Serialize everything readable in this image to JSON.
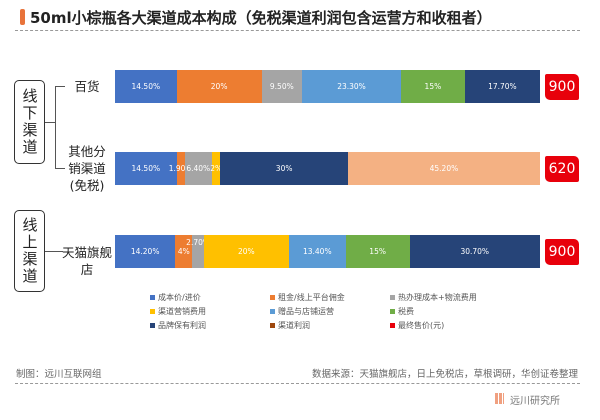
{
  "title": "50ml小棕瓶各大渠道成本构成（免税渠道利润包含运营方和收租者）",
  "groups": [
    {
      "label": "线下渠道"
    },
    {
      "label": "线上渠道"
    }
  ],
  "chart_data": {
    "type": "bar",
    "stacked": true,
    "orientation": "horizontal",
    "title": "50ml小棕瓶各大渠道成本构成（免税渠道利润包含运营方和收租者）",
    "categories": [
      "百货",
      "其他分销渠道(免税)",
      "天猫旗舰店"
    ],
    "category_lines": [
      [
        "百货"
      ],
      [
        "其他分",
        "销渠道",
        "(免税)"
      ],
      [
        "天猫旗舰店"
      ]
    ],
    "unit": "%",
    "series": [
      {
        "name": "成本价/进价",
        "color": "#4472c4",
        "values": [
          14.5,
          14.5,
          14.2
        ],
        "labels": [
          "14.50%",
          "14.50%",
          "14.20%"
        ]
      },
      {
        "name": "租金/线上平台佣金",
        "color": "#ed7d31",
        "values": [
          20,
          1.9,
          4
        ],
        "labels": [
          "20%",
          "1.90%",
          "4%"
        ]
      },
      {
        "name": "热办理成本+物流费用",
        "color": "#a5a5a5",
        "values": [
          9.5,
          6.4,
          2.7
        ],
        "labels": [
          "9.50%",
          "6.40%",
          "2.70%"
        ]
      },
      {
        "name": "渠道营销费用",
        "color": "#ffc000",
        "values": [
          0,
          2,
          20
        ],
        "labels": [
          "",
          "2%",
          "20%"
        ]
      },
      {
        "name": "赠品与店铺运营",
        "color": "#5b9bd5",
        "values": [
          23.3,
          0,
          13.4
        ],
        "labels": [
          "23.30%",
          "",
          "13.40%"
        ]
      },
      {
        "name": "税费",
        "color": "#70ad47",
        "values": [
          15,
          0,
          15
        ],
        "labels": [
          "15%",
          "",
          "15%"
        ]
      },
      {
        "name": "品牌保有利润",
        "color": "#264478",
        "values": [
          17.7,
          30,
          30.7
        ],
        "labels": [
          "17.70%",
          "30%",
          "30.70%"
        ]
      },
      {
        "name": "渠道利润",
        "color": "#9e480e",
        "bar_color": "#f4b183",
        "values": [
          0,
          45.2,
          0
        ],
        "labels": [
          "",
          "45.20%",
          ""
        ]
      }
    ],
    "final_price": {
      "name": "最终售价(元)",
      "color": "#e8000b",
      "values": [
        900,
        620,
        900
      ]
    },
    "xlim": [
      0,
      100
    ]
  },
  "footer": {
    "left": "制图：远川互联网组",
    "right": "数据来源：天猫旗舰店，日上免税店，草根调研，华创证卷整理",
    "logo": "远川研究所"
  }
}
